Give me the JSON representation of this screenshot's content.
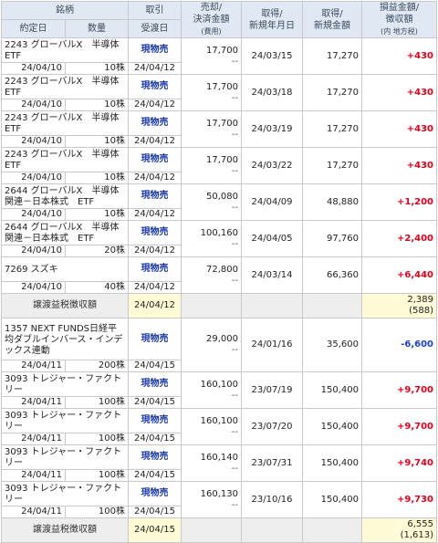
{
  "headers": {
    "meigara": "銘柄",
    "yakujou_date": "約定日",
    "quantity": "数量",
    "torihiki": "取引",
    "ukewatashi_date": "受渡日",
    "sell_amount_line1": "売却/",
    "sell_amount_line2": "決済金額",
    "sell_amount_line3": "(費用)",
    "acq_date_line1": "取得/",
    "acq_date_line2": "新規年月日",
    "acq_amount_line1": "取得/",
    "acq_amount_line2": "新規金額",
    "pl_line1": "損益金額/",
    "pl_line2": "徴収額",
    "pl_line3": "(内 地方税)"
  },
  "group1": [
    {
      "name": "2243 グローバルX　半導体ETF",
      "trade_date": "24/04/10",
      "qty": "10株",
      "type": "現物売",
      "settle_date": "24/04/12",
      "sell": "17,700",
      "fee": "--",
      "acq_date": "24/03/15",
      "acq_amount": "17,270",
      "pl": "+430"
    },
    {
      "name": "2243 グローバルX　半導体ETF",
      "trade_date": "24/04/10",
      "qty": "10株",
      "type": "現物売",
      "settle_date": "24/04/12",
      "sell": "17,700",
      "fee": "--",
      "acq_date": "24/03/18",
      "acq_amount": "17,270",
      "pl": "+430"
    },
    {
      "name": "2243 グローバルX　半導体ETF",
      "trade_date": "24/04/10",
      "qty": "10株",
      "type": "現物売",
      "settle_date": "24/04/12",
      "sell": "17,700",
      "fee": "--",
      "acq_date": "24/03/19",
      "acq_amount": "17,270",
      "pl": "+430"
    },
    {
      "name": "2243 グローバルX　半導体ETF",
      "trade_date": "24/04/10",
      "qty": "10株",
      "type": "現物売",
      "settle_date": "24/04/12",
      "sell": "17,700",
      "fee": "--",
      "acq_date": "24/03/22",
      "acq_amount": "17,270",
      "pl": "+430"
    },
    {
      "name": "2644 グローバルX　半導体関連－日本株式　ETF",
      "trade_date": "24/04/10",
      "qty": "10株",
      "type": "現物売",
      "settle_date": "24/04/12",
      "sell": "50,080",
      "fee": "--",
      "acq_date": "24/04/09",
      "acq_amount": "48,880",
      "pl": "+1,200"
    },
    {
      "name": "2644 グローバルX　半導体関連－日本株式　ETF",
      "trade_date": "24/04/10",
      "qty": "20株",
      "type": "現物売",
      "settle_date": "24/04/12",
      "sell": "100,160",
      "fee": "--",
      "acq_date": "24/04/05",
      "acq_amount": "97,760",
      "pl": "+2,400"
    },
    {
      "name": "7269 スズキ",
      "trade_date": "24/04/10",
      "qty": "40株",
      "type": "現物売",
      "settle_date": "24/04/12",
      "sell": "72,800",
      "fee": "--",
      "acq_date": "24/03/14",
      "acq_amount": "66,360",
      "pl": "+6,440"
    }
  ],
  "summary1": {
    "label": "譲渡益税徴収額",
    "date": "24/04/12",
    "amount": "2,389",
    "local": "(588)"
  },
  "group2": [
    {
      "name": "1357 NEXT FUNDS日経平均ダブルインバース・インデックス連動",
      "trade_date": "24/04/11",
      "qty": "200株",
      "type": "現物売",
      "settle_date": "24/04/15",
      "sell": "29,000",
      "fee": "--",
      "acq_date": "24/01/16",
      "acq_amount": "35,600",
      "pl": "-6,600"
    },
    {
      "name": "3093 トレジャー・ファクトリー",
      "trade_date": "24/04/11",
      "qty": "100株",
      "type": "現物売",
      "settle_date": "24/04/15",
      "sell": "160,100",
      "fee": "--",
      "acq_date": "23/07/19",
      "acq_amount": "150,400",
      "pl": "+9,700"
    },
    {
      "name": "3093 トレジャー・ファクトリー",
      "trade_date": "24/04/11",
      "qty": "100株",
      "type": "現物売",
      "settle_date": "24/04/15",
      "sell": "160,100",
      "fee": "--",
      "acq_date": "23/07/20",
      "acq_amount": "150,400",
      "pl": "+9,700"
    },
    {
      "name": "3093 トレジャー・ファクトリー",
      "trade_date": "24/04/11",
      "qty": "100株",
      "type": "現物売",
      "settle_date": "24/04/15",
      "sell": "160,140",
      "fee": "--",
      "acq_date": "23/07/31",
      "acq_amount": "150,400",
      "pl": "+9,740"
    },
    {
      "name": "3093 トレジャー・ファクトリー",
      "trade_date": "24/04/11",
      "qty": "100株",
      "type": "現物売",
      "settle_date": "24/04/15",
      "sell": "160,130",
      "fee": "--",
      "acq_date": "23/10/16",
      "acq_amount": "150,400",
      "pl": "+9,730"
    }
  ],
  "summary2": {
    "label": "譲渡益税徴収額",
    "date": "24/04/15",
    "amount": "6,555",
    "local": "(1,613)"
  },
  "colors": {
    "header_bg": "#dfe8f3",
    "positive": "#e0001c",
    "negative": "#1a3fd6",
    "type_text": "#1a3aa8",
    "summary_bg": "#eeeeee",
    "summary_amount_bg": "#fffbd6"
  }
}
